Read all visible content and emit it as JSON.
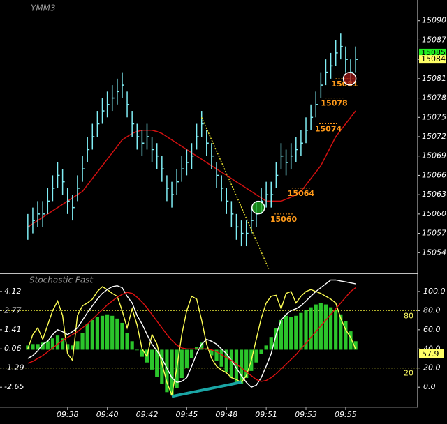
{
  "chart_data": [
    {
      "type": "ohlc",
      "title": "YMM3",
      "color": "#80eef5",
      "high": [
        15060,
        15061,
        15062,
        15062,
        15064,
        15066,
        15068,
        15067,
        15064,
        15063,
        15066,
        15069,
        15072,
        15074,
        15076,
        15078,
        15079,
        15080,
        15081,
        15082,
        15079,
        15076,
        15074,
        15073,
        15074,
        15072,
        15071,
        15069,
        15066,
        15065,
        15067,
        15069,
        15070,
        15071,
        15074,
        15076,
        15073,
        15071,
        15068,
        15066,
        15064,
        15062,
        15060,
        15059,
        15059,
        15061,
        15062,
        15064,
        15065,
        15065,
        15068,
        15071,
        15070,
        15071,
        15072,
        15073,
        15075,
        15077,
        15079,
        15082,
        15084,
        15085,
        15087,
        15088,
        15086,
        15084,
        15086
      ],
      "low": [
        15056,
        15057,
        15058,
        15058,
        15060,
        15062,
        15064,
        15063,
        15060,
        15059,
        15062,
        15065,
        15068,
        15070,
        15072,
        15074,
        15075,
        15076,
        15077,
        15078,
        15075,
        15072,
        15070,
        15069,
        15070,
        15068,
        15067,
        15065,
        15062,
        15061,
        15063,
        15065,
        15066,
        15067,
        15070,
        15072,
        15069,
        15067,
        15064,
        15062,
        15060,
        15058,
        15056,
        15055,
        15055,
        15057,
        15058,
        15060,
        15061,
        15061,
        15064,
        15067,
        15066,
        15067,
        15068,
        15069,
        15071,
        15073,
        15075,
        15078,
        15080,
        15081,
        15083,
        15084,
        15082,
        15080,
        15082
      ],
      "close": [
        15058,
        15059,
        15060,
        15060,
        15062,
        15064,
        15066,
        15065,
        15062,
        15061,
        15064,
        15067,
        15070,
        15072,
        15074,
        15076,
        15077,
        15078,
        15079,
        15080,
        15077,
        15074,
        15072,
        15071,
        15072,
        15070,
        15069,
        15067,
        15064,
        15063,
        15065,
        15067,
        15068,
        15069,
        15072,
        15074,
        15071,
        15069,
        15066,
        15064,
        15062,
        15060,
        15058,
        15057,
        15057,
        15059,
        15060,
        15062,
        15063,
        15063,
        15066,
        15069,
        15068,
        15069,
        15070,
        15071,
        15073,
        15075,
        15077,
        15080,
        15082,
        15083,
        15085,
        15086,
        15084,
        15082,
        15084
      ],
      "overlays": [
        {
          "color": "#d01010",
          "values": [
            15058,
            15058.5,
            15059,
            15059.5,
            15060,
            15060.5,
            15061,
            15061.5,
            15062,
            15062.5,
            15063,
            15063.5,
            15064.5,
            15065.5,
            15066.5,
            15067.5,
            15068.5,
            15069.5,
            15070.5,
            15071.5,
            15072,
            15072.5,
            15072.8,
            15073,
            15073,
            15073,
            15072.8,
            15072.5,
            15072,
            15071.5,
            15071,
            15070.5,
            15070,
            15069.5,
            15069,
            15068.5,
            15068,
            15067.5,
            15067,
            15066.5,
            15066,
            15065.5,
            15065,
            15064.5,
            15064,
            15063.5,
            15063,
            15062.5,
            15062,
            15062,
            15062,
            15062,
            15062.3,
            15062.6,
            15063,
            15063.5,
            15064.5,
            15065.5,
            15066.5,
            15067.5,
            15069,
            15070.5,
            15072,
            15073,
            15074,
            15075,
            15076
          ]
        }
      ],
      "trendline": {
        "color": "#e8e030",
        "x": [
          35,
          48.5
        ],
        "values": [
          15075,
          15051.5
        ]
      },
      "price_labels": [
        {
          "x": 51.5,
          "value": 15060
        },
        {
          "x": 55,
          "value": 15064
        },
        {
          "x": 60.5,
          "value": 15074
        },
        {
          "x": 61.7,
          "value": 15078
        },
        {
          "x": 63.8,
          "value": 15081
        }
      ],
      "label_color": "#ff9a1a",
      "last_prices": [
        {
          "value": 15085,
          "color": "#22ee22"
        },
        {
          "value": 15084,
          "color": "#ffff66"
        }
      ],
      "markers": [
        {
          "x": 46.4,
          "value": 15061,
          "color": "#22bb22"
        },
        {
          "x": 64.8,
          "value": 15081,
          "color": "#aa1818"
        }
      ],
      "xlim": [
        -0.4,
        78.5
      ],
      "ylim": [
        15051,
        15093
      ],
      "yticks": [
        15054,
        15057,
        15060,
        15063,
        15066,
        15069,
        15072,
        15075,
        15078,
        15081,
        15084,
        15087,
        15090
      ]
    },
    {
      "type": "stochastic",
      "title": "Stochastic Fast",
      "histogram": {
        "color": "#33e833",
        "values": [
          0.3,
          0.4,
          0.4,
          0.5,
          0.6,
          0.8,
          1.0,
          0.8,
          0.4,
          0.3,
          0.6,
          1.2,
          1.8,
          2.1,
          2.3,
          2.4,
          2.5,
          2.4,
          2.2,
          1.9,
          1.2,
          0.6,
          0.0,
          -0.5,
          -0.9,
          -1.4,
          -1.9,
          -2.4,
          -3.0,
          -3.2,
          -2.7,
          -2.0,
          -1.3,
          -0.6,
          0.2,
          0.5,
          0.1,
          -0.4,
          -0.8,
          -1.2,
          -1.6,
          -2.0,
          -2.3,
          -2.4,
          -2.0,
          -1.5,
          -0.9,
          -0.3,
          0.3,
          0.9,
          1.5,
          2.1,
          2.4,
          2.3,
          2.4,
          2.6,
          2.8,
          3.0,
          3.2,
          3.3,
          3.2,
          3.0,
          2.8,
          2.5,
          2.0,
          1.3,
          0.6
        ]
      },
      "series": [
        {
          "color": "#ffff55",
          "axis": "y2",
          "values": [
            40,
            55,
            62,
            50,
            65,
            80,
            90,
            75,
            35,
            28,
            75,
            85,
            88,
            92,
            100,
            105,
            102,
            98,
            95,
            80,
            62,
            82,
            65,
            40,
            32,
            55,
            45,
            25,
            5,
            -8,
            20,
            55,
            80,
            95,
            92,
            70,
            45,
            30,
            22,
            18,
            15,
            10,
            8,
            5,
            12,
            28,
            50,
            72,
            88,
            95,
            96,
            82,
            98,
            100,
            88,
            95,
            100,
            102,
            100,
            98,
            95,
            92,
            88,
            72,
            60,
            52,
            40
          ]
        },
        {
          "color": "#ffffff",
          "axis": "y2",
          "values": [
            30,
            33,
            38,
            45,
            48,
            55,
            60,
            58,
            55,
            58,
            62,
            70,
            78,
            85,
            92,
            98,
            102,
            105,
            106,
            104,
            95,
            88,
            75,
            66,
            55,
            45,
            38,
            30,
            20,
            10,
            5,
            6,
            10,
            22,
            35,
            45,
            50,
            48,
            45,
            40,
            35,
            28,
            20,
            12,
            5,
            0,
            2,
            10,
            22,
            35,
            55,
            70,
            76,
            80,
            82,
            85,
            90,
            95,
            100,
            104,
            108,
            112,
            112,
            111,
            110,
            109,
            108
          ]
        },
        {
          "color": "#dd1111",
          "axis": "y2",
          "values": [
            25,
            27,
            30,
            33,
            37,
            41,
            45,
            49,
            52,
            55,
            58,
            62,
            66,
            71,
            76,
            81,
            86,
            90,
            94,
            97,
            99,
            98,
            94,
            89,
            83,
            76,
            69,
            62,
            55,
            49,
            44,
            41,
            40,
            40,
            40,
            40,
            40,
            39,
            37,
            34,
            31,
            28,
            24,
            20,
            16,
            12,
            8,
            6,
            7,
            10,
            14,
            19,
            24,
            29,
            34,
            40,
            46,
            52,
            58,
            64,
            70,
            76,
            82,
            88,
            94,
            100,
            104
          ]
        }
      ],
      "trendline": {
        "color": "#1aa5a5",
        "x": [
          29,
          43
        ],
        "values": [
          -3.3,
          -2.3
        ]
      },
      "levels": [
        80,
        20
      ],
      "level_color": "#c8c830",
      "last_value": 57.9,
      "last_value_color": "#ffff66",
      "xlim": [
        -0.4,
        78.5
      ],
      "xticks": [
        {
          "value": 8,
          "label": "09:38"
        },
        {
          "value": 16,
          "label": "09:40"
        },
        {
          "value": 24,
          "label": "09:42"
        },
        {
          "value": 32,
          "label": "09:45"
        },
        {
          "value": 40,
          "label": "09:48"
        },
        {
          "value": 48,
          "label": "09:51"
        },
        {
          "value": 56,
          "label": "09:53"
        },
        {
          "value": 64,
          "label": "09:55"
        }
      ],
      "ylim": [
        -4.07,
        5.2
      ],
      "yticks": [
        4.12,
        2.77,
        1.41,
        0.06,
        -1.29,
        -2.65
      ],
      "y2lim": [
        -21,
        116
      ],
      "y2ticks": [
        {
          "value": 0,
          "label": "0.0"
        },
        {
          "value": 20,
          "label": "20.0"
        },
        {
          "value": 40,
          "label": "40.0"
        },
        {
          "value": 60,
          "label": "60.0"
        },
        {
          "value": 80,
          "label": "80.0"
        },
        {
          "value": 100,
          "label": "100.0"
        }
      ]
    }
  ]
}
